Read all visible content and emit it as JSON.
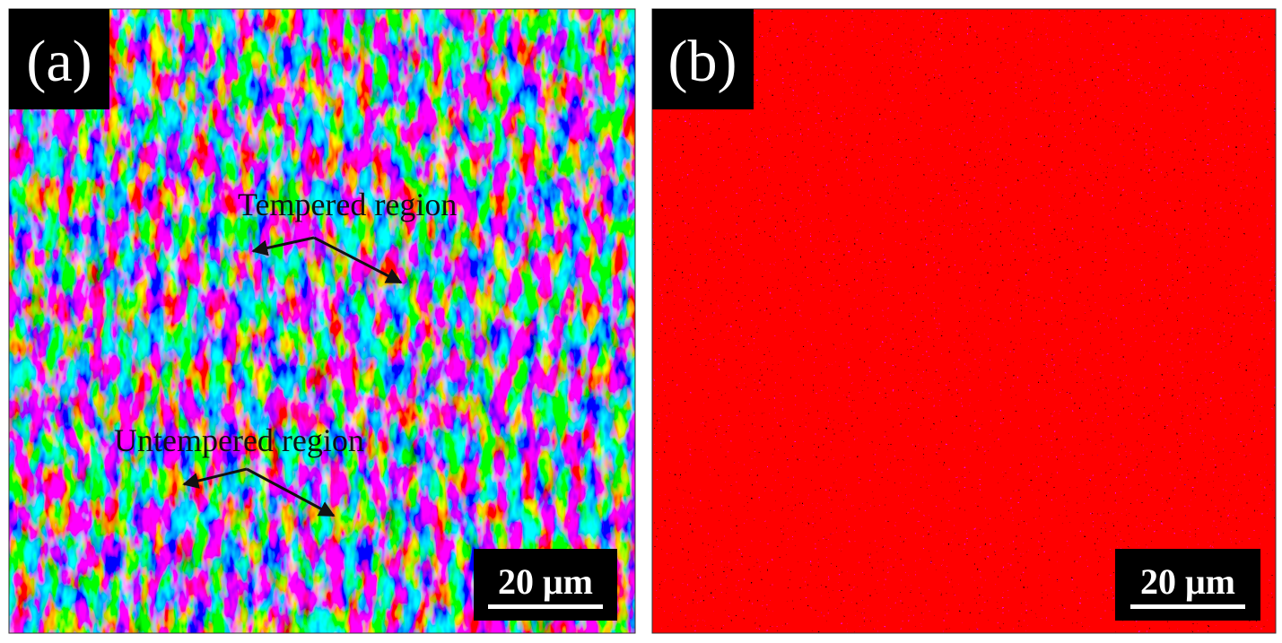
{
  "panels": [
    {
      "label": "(a)",
      "annotations": [
        "Tempered region",
        "Untempered region"
      ],
      "scale_bar": "20 μm"
    },
    {
      "label": "(b)",
      "scale_bar": "20 μm"
    }
  ]
}
